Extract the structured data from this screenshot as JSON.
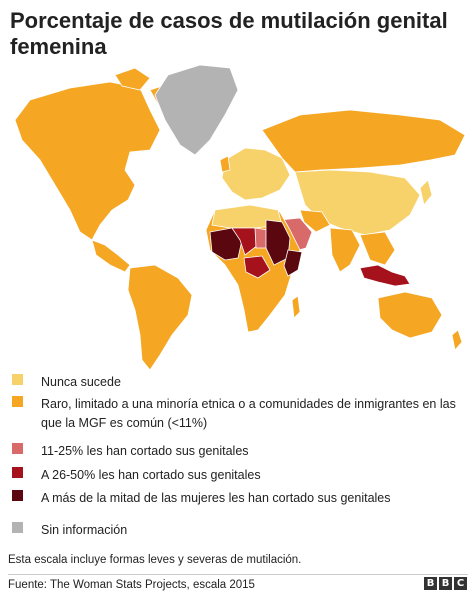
{
  "title": "Porcentaje de casos de mutilación genital femenina",
  "colors": {
    "nunca": "#f7d26b",
    "raro": "#f5a623",
    "c11_25": "#d96a6a",
    "c26_50": "#a5121b",
    "mas_mitad": "#5b0710",
    "sin_info": "#b3b3b3",
    "ocean": "#ffffff",
    "border": "#ffffff"
  },
  "legend": [
    {
      "key": "nunca",
      "label": "Nunca sucede"
    },
    {
      "key": "raro",
      "label": "Raro, limitado a una minoría etnica o a comunidades de inmigrantes en las que la MGF es común (<11%)"
    },
    {
      "key": "c11_25",
      "label": "11-25%  les han cortado sus genitales"
    },
    {
      "key": "c26_50",
      "label": "A 26-50% les han cortado sus genitales"
    },
    {
      "key": "mas_mitad",
      "label": "A más de la mitad de las mujeres les han cortado sus genitales"
    },
    {
      "key": "sin_info",
      "label": "Sin información"
    }
  ],
  "note": "Esta escala incluye formas leves y severas de mutilación.",
  "source": "Fuente: The Woman Stats Projects, escala 2015",
  "brand": {
    "b1": "B",
    "b2": "B",
    "b3": "C"
  }
}
